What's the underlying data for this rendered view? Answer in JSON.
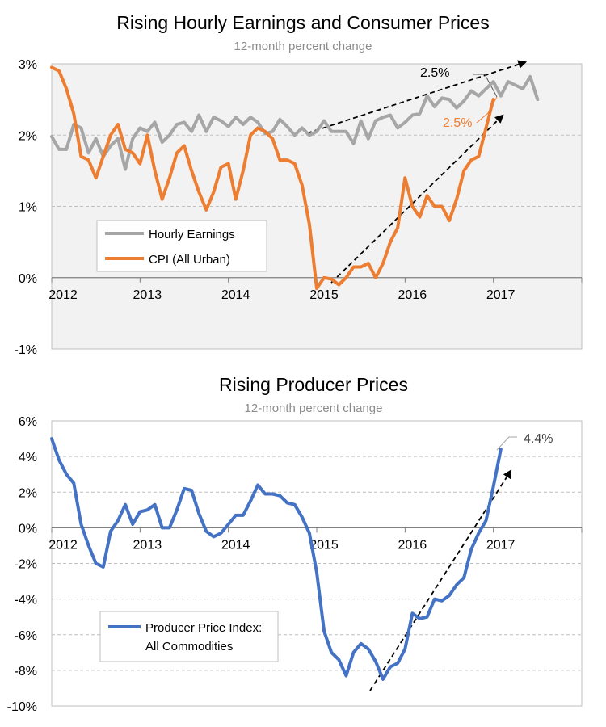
{
  "chart_data": [
    {
      "type": "line",
      "title": "Rising Hourly Earnings and Consumer Prices",
      "subtitle": "12-month percent change",
      "ylim": [
        -1,
        3
      ],
      "y_ticks": [
        "3%",
        "2%",
        "1%",
        "0%",
        "-1%"
      ],
      "x_ticks": [
        "2012",
        "2013",
        "2014",
        "2015",
        "2016",
        "2017"
      ],
      "grid": "horizontal dashed",
      "legend": "bottom-left",
      "series": [
        {
          "name": "Hourly Earnings",
          "color": "#a6a6a6",
          "start": 2012.0,
          "step": 0.08333,
          "values": [
            1.98,
            1.8,
            1.8,
            2.15,
            2.1,
            1.75,
            1.95,
            1.7,
            1.85,
            1.95,
            1.52,
            1.95,
            2.1,
            2.05,
            2.18,
            1.9,
            2.0,
            2.15,
            2.18,
            2.05,
            2.28,
            2.05,
            2.25,
            2.2,
            2.12,
            2.25,
            2.15,
            2.25,
            2.18,
            2.02,
            2.05,
            2.22,
            2.12,
            2.0,
            2.1,
            2.0,
            2.05,
            2.2,
            2.05,
            2.05,
            2.05,
            1.88,
            2.2,
            1.95,
            2.2,
            2.25,
            2.28,
            2.1,
            2.18,
            2.28,
            2.3,
            2.55,
            2.4,
            2.52,
            2.5,
            2.38,
            2.48,
            2.62,
            2.55,
            2.65,
            2.75,
            2.55,
            2.75,
            2.7,
            2.65,
            2.82,
            2.5
          ]
        },
        {
          "name": "CPI (All Urban)",
          "color": "#ed7d31",
          "start": 2012.0,
          "step": 0.08333,
          "values": [
            2.95,
            2.9,
            2.65,
            2.3,
            1.7,
            1.65,
            1.4,
            1.7,
            2.0,
            2.15,
            1.8,
            1.75,
            1.6,
            2.0,
            1.5,
            1.1,
            1.4,
            1.75,
            1.85,
            1.5,
            1.2,
            0.95,
            1.2,
            1.55,
            1.6,
            1.1,
            1.5,
            2.0,
            2.1,
            2.05,
            1.95,
            1.65,
            1.65,
            1.6,
            1.3,
            0.75,
            -0.15,
            0.0,
            -0.02,
            -0.1,
            0.0,
            0.15,
            0.15,
            0.2,
            0.0,
            0.2,
            0.5,
            0.7,
            1.4,
            1.0,
            0.85,
            1.15,
            1.0,
            1.0,
            0.8,
            1.1,
            1.5,
            1.65,
            1.7,
            2.1,
            2.5
          ]
        }
      ],
      "annotations": [
        {
          "text": "2.5%",
          "color": "#000000"
        },
        {
          "text": "2.5%",
          "color": "#ed7d31"
        }
      ]
    },
    {
      "type": "line",
      "title": "Rising Producer Prices",
      "subtitle": "12-month percent change",
      "ylim": [
        -10,
        6
      ],
      "y_ticks": [
        "6%",
        "4%",
        "2%",
        "0%",
        "-2%",
        "-4%",
        "-6%",
        "-8%",
        "-10%"
      ],
      "x_ticks": [
        "2012",
        "2013",
        "2014",
        "2015",
        "2016",
        "2017"
      ],
      "grid": "horizontal dashed",
      "legend": "bottom-left",
      "series": [
        {
          "name": "Producer Price Index:\nAll Commodities",
          "legend_lines": [
            "Producer Price Index:",
            "All Commodities"
          ],
          "color": "#4472c4",
          "start": 2012.0,
          "step": 0.08333,
          "values": [
            5.0,
            3.8,
            3.0,
            2.5,
            0.2,
            -1.0,
            -2.0,
            -2.2,
            -0.2,
            0.4,
            1.3,
            0.2,
            0.9,
            1.0,
            1.3,
            0.0,
            0.0,
            1.0,
            2.2,
            2.1,
            0.8,
            -0.2,
            -0.5,
            -0.3,
            0.2,
            0.7,
            0.7,
            1.5,
            2.4,
            1.9,
            1.9,
            1.8,
            1.4,
            1.3,
            0.6,
            -0.3,
            -2.5,
            -5.8,
            -7.0,
            -7.4,
            -8.3,
            -7.0,
            -6.5,
            -6.8,
            -7.5,
            -8.5,
            -7.8,
            -7.6,
            -6.8,
            -4.8,
            -5.1,
            -5.0,
            -4.0,
            -4.1,
            -3.8,
            -3.2,
            -2.8,
            -1.2,
            -0.3,
            0.4,
            2.3,
            4.4
          ]
        }
      ],
      "annotations": [
        {
          "text": "4.4%",
          "color": "#404040"
        }
      ]
    }
  ]
}
